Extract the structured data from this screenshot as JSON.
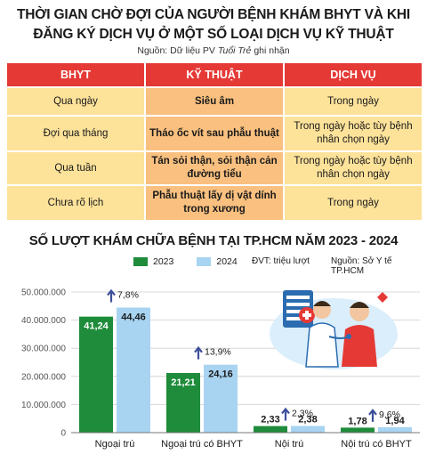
{
  "header": {
    "title_line1": "THỜI GIAN CHỜ ĐỢI CỦA NGƯỜI BỆNH KHÁM BHYT VÀ KHI",
    "title_line2": "ĐĂNG KÝ DỊCH VỤ Ở MỘT SỐ LOẠI DỊCH VỤ KỸ THUẬT",
    "source_prefix": "Nguồn: Dữ liệu PV ",
    "source_italic": "Tuổi Trẻ",
    "source_suffix": " ghi nhận"
  },
  "table": {
    "headers": [
      "BHYT",
      "KỸ THUẬT",
      "DỊCH VỤ"
    ],
    "rows": [
      [
        "Qua ngày",
        "Siêu âm",
        "Trong ngày"
      ],
      [
        "Đợi qua tháng",
        "Tháo ốc vít sau phẫu thuật",
        "Trong ngày hoặc tùy bệnh nhân chọn ngày"
      ],
      [
        "Qua tuần",
        "Tán sỏi thận, sỏi thận cản đường tiểu",
        "Trong ngày hoặc tùy bệnh nhân chọn ngày"
      ],
      [
        "Chưa rõ lịch",
        "Phẫu thuật lấy dị vật dính trong xương",
        "Trong ngày"
      ]
    ]
  },
  "chart_title": "SỐ LƯỢT KHÁM CHỮA BỆNH TẠI TP.HCM NĂM 2023 - 2024",
  "legend": {
    "y2023": "2023",
    "y2024": "2024"
  },
  "unit_note": "ĐVT: triệu lượt",
  "chart_source": "Nguồn: Sở Y tế TP.HCM",
  "colors": {
    "s2023": "#1e8c3a",
    "s2024": "#a8d4f2",
    "header_red": "#e53935",
    "cell_yellow": "#fde29a",
    "cell_orange": "#f9c07f",
    "arrow": "#3d4f9a"
  },
  "chart_data": {
    "type": "bar",
    "categories": [
      "Ngoại trú",
      "Ngoại trú có BHYT",
      "Nội trú",
      "Nội trú có BHYT"
    ],
    "series": [
      {
        "name": "2023",
        "values": [
          41.24,
          21.21,
          2.33,
          1.78
        ],
        "labels": [
          "41,24",
          "21,21",
          "2,33",
          "1,78"
        ]
      },
      {
        "name": "2024",
        "values": [
          44.46,
          24.16,
          2.38,
          1.94
        ],
        "labels": [
          "44,46",
          "24,16",
          "2,38",
          "1,94"
        ]
      }
    ],
    "growth_labels": [
      "7,8%",
      "13,9%",
      "2,3%",
      "9,6%"
    ],
    "y_ticks": [
      0,
      10,
      20,
      30,
      40,
      50
    ],
    "y_tick_labels": [
      "0",
      "10.000.000",
      "20.000.000",
      "30.000.000",
      "40.000.000",
      "50.000.000"
    ],
    "ylim": [
      0,
      50
    ],
    "grid": true
  }
}
